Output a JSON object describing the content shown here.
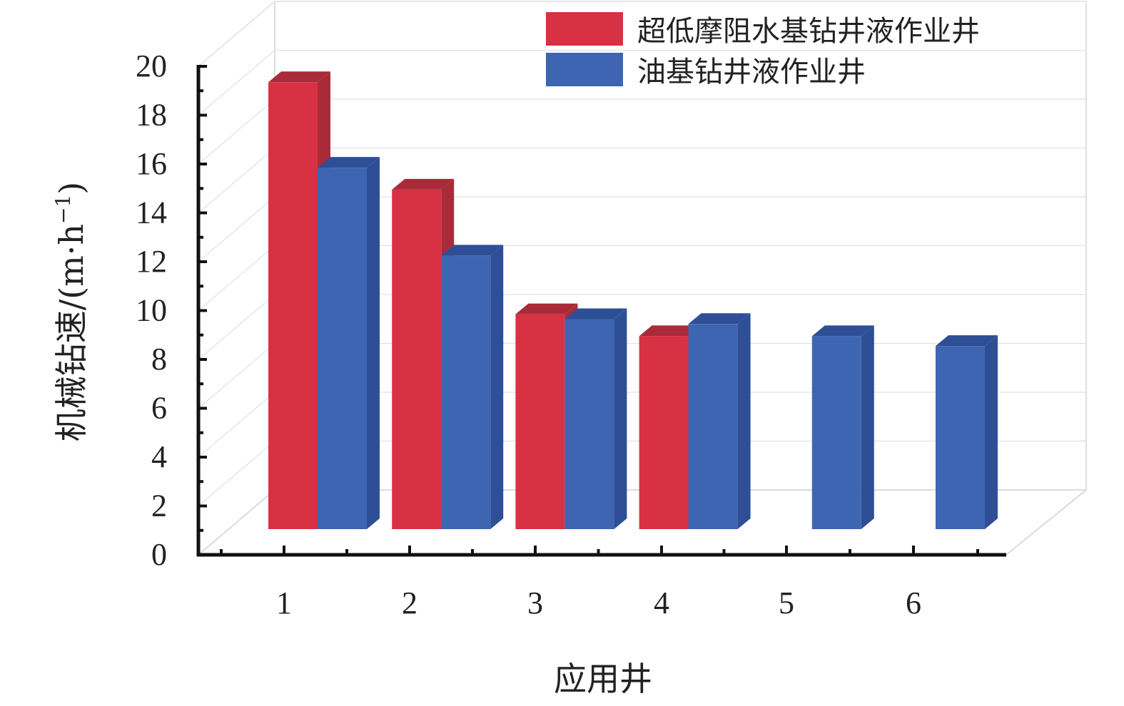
{
  "chart_data": {
    "type": "bar",
    "categories": [
      "1",
      "2",
      "3",
      "4",
      "5",
      "6"
    ],
    "series": [
      {
        "name": "超低摩阻水基钻井液作业井",
        "color": "#d93144",
        "side_color": "#a92b39",
        "values": [
          18.3,
          13.9,
          8.8,
          7.9,
          null,
          null
        ]
      },
      {
        "name": "油基钻井液作业井",
        "color": "#3d65b2",
        "side_color": "#2e4f96",
        "values": [
          14.8,
          11.2,
          8.6,
          8.4,
          7.9,
          7.5
        ]
      }
    ],
    "xlabel": "应用井",
    "ylabel": "机械钻速/(m·h",
    "ylabel_sup": "−1",
    "ylabel_close": ")",
    "ylim": [
      0,
      20
    ],
    "yticks": [
      "0",
      "2",
      "4",
      "6",
      "8",
      "10",
      "12",
      "14",
      "16",
      "18",
      "20"
    ],
    "grid": true,
    "legend_position": "top-right"
  }
}
